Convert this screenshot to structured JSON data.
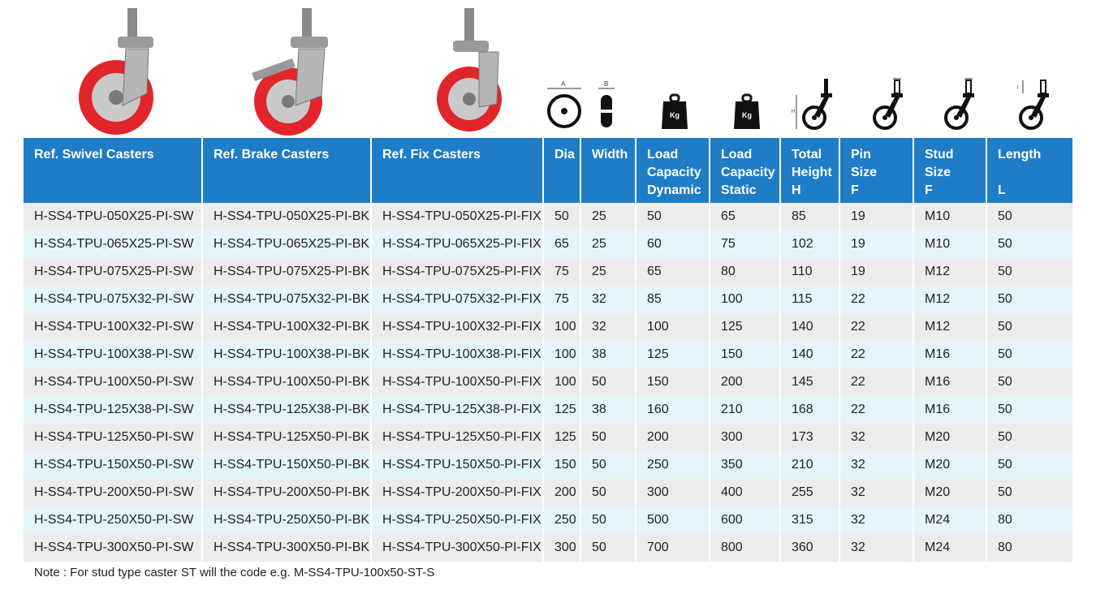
{
  "images": [
    {
      "name": "swivel-caster-image"
    },
    {
      "name": "brake-caster-image"
    },
    {
      "name": "fix-caster-image"
    }
  ],
  "icons": {
    "dia": {
      "label": "A"
    },
    "width": {
      "label": "B"
    },
    "load_dynamic": {
      "label": "Kg"
    },
    "load_static": {
      "label": "Kg"
    },
    "total_height": {
      "label": "H"
    },
    "pin_size": {
      "label": "F"
    },
    "stud_size": {
      "label": "F"
    },
    "length": {
      "label": "L"
    }
  },
  "colors": {
    "header": "#1e7dc6",
    "row_odd": "#ececec",
    "row_even": "#e5f4fb",
    "wheel_red": "#e0262a"
  },
  "table": {
    "headers": [
      {
        "key": "swivel",
        "lines": [
          "Ref. Swivel Casters"
        ]
      },
      {
        "key": "brake",
        "lines": [
          "Ref. Brake Casters"
        ]
      },
      {
        "key": "fix",
        "lines": [
          "Ref. Fix Casters"
        ]
      },
      {
        "key": "dia",
        "lines": [
          "Dia"
        ]
      },
      {
        "key": "width",
        "lines": [
          "Width"
        ]
      },
      {
        "key": "load_dynamic",
        "lines": [
          "Load",
          "Capacity",
          "Dynamic"
        ]
      },
      {
        "key": "load_static",
        "lines": [
          "Load",
          "Capacity",
          "Static"
        ]
      },
      {
        "key": "total_height",
        "lines": [
          "Total",
          "Height",
          "H"
        ]
      },
      {
        "key": "pin_size",
        "lines": [
          "Pin",
          "Size",
          "F"
        ]
      },
      {
        "key": "stud_size",
        "lines": [
          "Stud",
          "Size",
          "F"
        ]
      },
      {
        "key": "length",
        "lines": [
          "Length",
          "",
          "L"
        ]
      }
    ],
    "rows": [
      [
        "H-SS4-TPU-050X25-PI-SW",
        "H-SS4-TPU-050X25-PI-BK",
        "H-SS4-TPU-050X25-PI-FIX",
        "50",
        "25",
        "50",
        "65",
        "85",
        "19",
        "M10",
        "50"
      ],
      [
        "H-SS4-TPU-065X25-PI-SW",
        "H-SS4-TPU-065X25-PI-BK",
        "H-SS4-TPU-065X25-PI-FIX",
        "65",
        "25",
        "60",
        "75",
        "102",
        "19",
        "M10",
        "50"
      ],
      [
        "H-SS4-TPU-075X25-PI-SW",
        "H-SS4-TPU-075X25-PI-BK",
        "H-SS4-TPU-075X25-PI-FIX",
        "75",
        "25",
        "65",
        "80",
        "110",
        "19",
        "M12",
        "50"
      ],
      [
        "H-SS4-TPU-075X32-PI-SW",
        "H-SS4-TPU-075X32-PI-BK",
        "H-SS4-TPU-075X32-PI-FIX",
        "75",
        "32",
        "85",
        "100",
        "115",
        "22",
        "M12",
        "50"
      ],
      [
        "H-SS4-TPU-100X32-PI-SW",
        "H-SS4-TPU-100X32-PI-BK",
        "H-SS4-TPU-100X32-PI-FIX",
        "100",
        "32",
        "100",
        "125",
        "140",
        "22",
        "M12",
        "50"
      ],
      [
        "H-SS4-TPU-100X38-PI-SW",
        "H-SS4-TPU-100X38-PI-BK",
        "H-SS4-TPU-100X38-PI-FIX",
        "100",
        "38",
        "125",
        "150",
        "140",
        "22",
        "M16",
        "50"
      ],
      [
        "H-SS4-TPU-100X50-PI-SW",
        "H-SS4-TPU-100X50-PI-BK",
        "H-SS4-TPU-100X50-PI-FIX",
        "100",
        "50",
        "150",
        "200",
        "145",
        "22",
        "M16",
        "50"
      ],
      [
        "H-SS4-TPU-125X38-PI-SW",
        "H-SS4-TPU-125X38-PI-BK",
        "H-SS4-TPU-125X38-PI-FIX",
        "125",
        "38",
        "160",
        "210",
        "168",
        "22",
        "M16",
        "50"
      ],
      [
        "H-SS4-TPU-125X50-PI-SW",
        "H-SS4-TPU-125X50-PI-BK",
        "H-SS4-TPU-125X50-PI-FIX",
        "125",
        "50",
        "200",
        "300",
        "173",
        "32",
        "M20",
        "50"
      ],
      [
        "H-SS4-TPU-150X50-PI-SW",
        "H-SS4-TPU-150X50-PI-BK",
        "H-SS4-TPU-150X50-PI-FIX",
        "150",
        "50",
        "250",
        "350",
        "210",
        "32",
        "M20",
        "50"
      ],
      [
        "H-SS4-TPU-200X50-PI-SW",
        "H-SS4-TPU-200X50-PI-BK",
        "H-SS4-TPU-200X50-PI-FIX",
        "200",
        "50",
        "300",
        "400",
        "255",
        "32",
        "M20",
        "50"
      ],
      [
        "H-SS4-TPU-250X50-PI-SW",
        "H-SS4-TPU-250X50-PI-BK",
        "H-SS4-TPU-250X50-PI-FIX",
        "250",
        "50",
        "500",
        "600",
        "315",
        "32",
        "M24",
        "80"
      ],
      [
        "H-SS4-TPU-300X50-PI-SW",
        "H-SS4-TPU-300X50-PI-BK",
        "H-SS4-TPU-300X50-PI-FIX",
        "300",
        "50",
        "700",
        "800",
        "360",
        "32",
        "M24",
        "80"
      ]
    ]
  },
  "note": "Note : For stud type caster ST will the code e.g. M-SS4-TPU-100x50-ST-S"
}
